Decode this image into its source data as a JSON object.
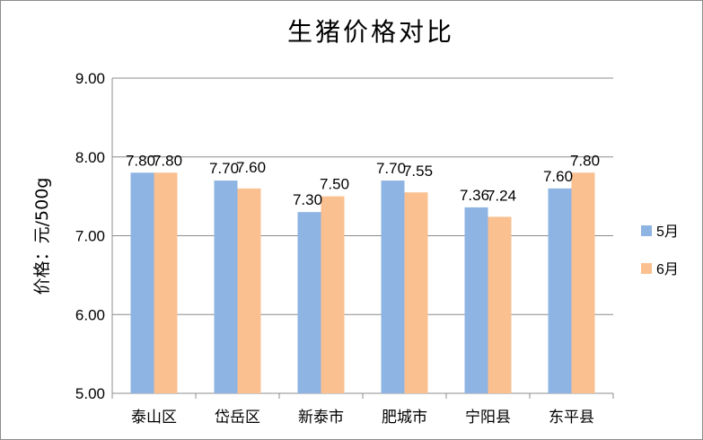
{
  "chart_data": {
    "type": "bar",
    "title": "生猪价格对比",
    "ylabel": "价格：元/500g",
    "xlabel": "",
    "categories": [
      "泰山区",
      "岱岳区",
      "新泰市",
      "肥城市",
      "宁阳县",
      "东平县"
    ],
    "series": [
      {
        "name": "5月",
        "values": [
          7.8,
          7.7,
          7.3,
          7.7,
          7.36,
          7.6
        ],
        "labels": [
          "7.80",
          "7.70",
          "7.30",
          "7.70",
          "7.36",
          "7.60"
        ],
        "color": "#8eb4e3"
      },
      {
        "name": "6月",
        "values": [
          7.8,
          7.6,
          7.5,
          7.55,
          7.24,
          7.8
        ],
        "labels": [
          "7.80",
          "7.60",
          "7.50",
          "7.55",
          "7.24",
          "7.80"
        ],
        "color": "#fac090"
      }
    ],
    "ylim": [
      5.0,
      9.0
    ],
    "yticks": [
      "5.00",
      "6.00",
      "7.00",
      "8.00",
      "9.00"
    ],
    "grid": true,
    "legend": "right"
  }
}
